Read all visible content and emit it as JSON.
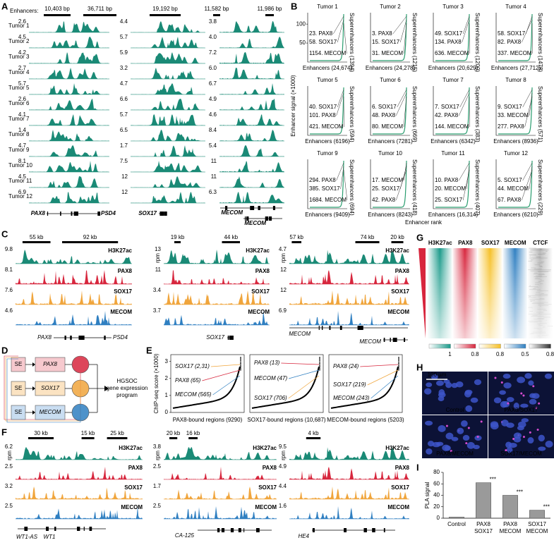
{
  "panel_labels": [
    "A",
    "B",
    "C",
    "D",
    "E",
    "F",
    "G",
    "H",
    "I"
  ],
  "a": {
    "enhancers_label": "Enhancers:",
    "scale_bars": [
      "10,403 bp",
      "36,711 bp",
      "19,192 bp",
      "11,582 bp",
      "11,986 bp"
    ],
    "tumors": [
      "Tumor 1",
      "Tumor 2",
      "Tumor 3",
      "Tumor 4",
      "Tumor 5",
      "Tumor 6",
      "Tumor 7",
      "Tumor 8",
      "Tumor 9",
      "Tumor 10",
      "Tumor 11",
      "Tumor 12"
    ],
    "track_color": "#1a8a76",
    "scales": [
      [
        2.6,
        4.5,
        4.2,
        2.7,
        5.7,
        2.6,
        4.1,
        1.4,
        4.7,
        8.1,
        4.5,
        6.9
      ],
      [
        4.4,
        5.7,
        5.9,
        3.2,
        4.7,
        6.6,
        5.7,
        6.5,
        1.7,
        7.5,
        12,
        12
      ],
      [
        3.8,
        "4.0",
        7.2,
        "6.0",
        6.7,
        4.9,
        4.6,
        8.4,
        5.4,
        11,
        11,
        6.3
      ]
    ],
    "genes": [
      {
        "name": "PAX8",
        "color": "#d7263d"
      },
      {
        "name": "PSD4",
        "color": "#000000"
      },
      {
        "name": "SOX17",
        "color": "#f0a53c"
      },
      {
        "name": "MECOM",
        "color": "#2f7fc1"
      },
      {
        "name": "MECOM",
        "color": "#2f7fc1"
      }
    ]
  },
  "b": {
    "y_label": "Enhancer signal (×1000)",
    "x_label": "Enhancer rank",
    "yticks": [
      50,
      100
    ],
    "ylim": [
      0,
      130
    ],
    "curve_color": "#2a9d6f",
    "plots": [
      {
        "title": "Tumor 1",
        "labels": [
          {
            "text": "23. PAX8",
            "color": "#d7263d"
          },
          {
            "text": "58. SOX17",
            "color": "#f0a53c"
          },
          {
            "text": "1154. MECOM",
            "color": "#2f7fc1"
          }
        ],
        "superenhancers": "Superenhancers (1394)",
        "enhancers": "Enhancers (24,674)"
      },
      {
        "title": "Tumor 2",
        "labels": [
          {
            "text": "3. PAX8",
            "color": "#d7263d"
          },
          {
            "text": "15. SOX17",
            "color": "#f0a53c"
          },
          {
            "text": "31. MECOM",
            "color": "#2f7fc1"
          }
        ],
        "superenhancers": "Superenhancers (1215)",
        "enhancers": "Enhancers (24,278)"
      },
      {
        "title": "Tumor 3",
        "labels": [
          {
            "text": "49. SOX17",
            "color": "#f0a53c"
          },
          {
            "text": "134. PAX8",
            "color": "#d7263d"
          },
          {
            "text": "636. MECOM",
            "color": "#2f7fc1"
          }
        ],
        "superenhancers": "Superenhancers (1200)",
        "enhancers": "Enhancers (20,629)"
      },
      {
        "title": "Tumor 4",
        "labels": [
          {
            "text": "58. SOX17",
            "color": "#f0a53c"
          },
          {
            "text": "82. PAX8",
            "color": "#d7263d"
          },
          {
            "text": "337. MECOM",
            "color": "#2f7fc1"
          }
        ],
        "superenhancers": "Superenhancers (1478)",
        "enhancers": "Enhancers (27,712)"
      },
      {
        "title": "Tumor 5",
        "labels": [
          {
            "text": "40. SOX17",
            "color": "#f0a53c"
          },
          {
            "text": "101. PAX8",
            "color": "#d7263d"
          },
          {
            "text": "421. MECOM",
            "color": "#2f7fc1"
          }
        ],
        "superenhancers": "Superenhancers (594)",
        "enhancers": "Enhancers (6196)"
      },
      {
        "title": "Tumor 6",
        "labels": [
          {
            "text": "6. SOX17",
            "color": "#f0a53c"
          },
          {
            "text": "48. PAX8",
            "color": "#d7263d"
          },
          {
            "text": "80. MECOM",
            "color": "#2f7fc1"
          }
        ],
        "superenhancers": "Superenhancers (669)",
        "enhancers": "Enhancers (7281)"
      },
      {
        "title": "Tumor 7",
        "labels": [
          {
            "text": "7. SOX17",
            "color": "#f0a53c"
          },
          {
            "text": "42. PAX8",
            "color": "#d7263d"
          },
          {
            "text": "144. MECOM",
            "color": "#2f7fc1"
          }
        ],
        "superenhancers": "Superenhancers (383)",
        "enhancers": "Enhancers (6342)"
      },
      {
        "title": "Tumor 8",
        "labels": [
          {
            "text": "9. SOX17",
            "color": "#f0a53c"
          },
          {
            "text": "33. MECOM",
            "color": "#2f7fc1"
          },
          {
            "text": "277. PAX8",
            "color": "#d7263d"
          }
        ],
        "superenhancers": "Superenhancers (571)",
        "enhancers": "Enhancers (8936)"
      },
      {
        "title": "Tumor 9",
        "labels": [
          {
            "text": "294. PAX8",
            "color": "#d7263d"
          },
          {
            "text": "385. SOX17",
            "color": "#f0a53c"
          },
          {
            "text": "1684. MECOM",
            "color": "#2f7fc1"
          }
        ],
        "superenhancers": "Superenhancers (694)",
        "enhancers": "Enhancers (9409)"
      },
      {
        "title": "Tumor 10",
        "labels": [
          {
            "text": "17. MECOM",
            "color": "#2f7fc1"
          },
          {
            "text": "25. SOX17",
            "color": "#f0a53c"
          },
          {
            "text": "42. PAX8",
            "color": "#d7263d"
          }
        ],
        "superenhancers": "Superenhancers (418)",
        "enhancers": "Enhancers (8243)"
      },
      {
        "title": "Tumor 11",
        "labels": [
          {
            "text": "10. PAX8",
            "color": "#d7263d"
          },
          {
            "text": "20. MECOM",
            "color": "#2f7fc1"
          },
          {
            "text": "25. SOX17",
            "color": "#f0a53c"
          }
        ],
        "superenhancers": "Superenhancers (407)",
        "enhancers": "Enhancers (16,314)"
      },
      {
        "title": "Tumor 12",
        "labels": [
          {
            "text": "5. SOX17",
            "color": "#f0a53c"
          },
          {
            "text": "44. MECOM",
            "color": "#2f7fc1"
          },
          {
            "text": "67. PAX8",
            "color": "#d7263d"
          }
        ],
        "superenhancers": "Superenhancers (229)",
        "enhancers": "Enhancers (6210)"
      }
    ]
  },
  "c": {
    "groups": [
      {
        "scale_bars": [
          "55 kb",
          "92 kb"
        ],
        "tracks": [
          {
            "name": "H3K27ac",
            "scale": 9.8,
            "color": "#1a8a76"
          },
          {
            "name": "PAX8",
            "scale": 8.1,
            "color": "#d7263d"
          },
          {
            "name": "SOX17",
            "scale": 7.6,
            "color": "#f0a53c"
          },
          {
            "name": "MECOM",
            "scale": 4.6,
            "color": "#2f7fc1"
          }
        ],
        "genes": [
          {
            "name": "PAX8",
            "color": "#d7263d"
          },
          {
            "name": "PSD4",
            "color": "#000000"
          }
        ]
      },
      {
        "scale_bars": [
          "19 kb",
          "44 kb"
        ],
        "unit": "rpm",
        "tracks": [
          {
            "name": "H3K27ac",
            "scale": 13,
            "color": "#1a8a76"
          },
          {
            "name": "PAX8",
            "scale": 11,
            "color": "#d7263d"
          },
          {
            "name": "SOX17",
            "scale": 3.4,
            "color": "#f0a53c"
          },
          {
            "name": "MECOM",
            "scale": 3.7,
            "color": "#2f7fc1"
          }
        ],
        "genes": [
          {
            "name": "SOX17",
            "color": "#f0a53c"
          }
        ]
      },
      {
        "scale_bars": [
          "57 kb",
          "74 kb",
          "20 kb"
        ],
        "unit": "rpm",
        "tracks": [
          {
            "name": "H3K27ac",
            "scale": 4.7,
            "color": "#1a8a76"
          },
          {
            "name": "PAX8",
            "scale": 12,
            "color": "#d7263d"
          },
          {
            "name": "SOX17",
            "scale": 12,
            "color": "#f0a53c"
          },
          {
            "name": "MECOM",
            "scale": 6.9,
            "color": "#2f7fc1"
          }
        ],
        "genes": [
          {
            "name": "MECOM",
            "color": "#2f7fc1"
          },
          {
            "name": "MECOM",
            "color": "#2f7fc1"
          }
        ]
      }
    ]
  },
  "d": {
    "se_labels": [
      "SE",
      "SE",
      "SE"
    ],
    "genes": [
      {
        "name": "PAX8",
        "color": "#d7263d",
        "tint": "#f6c9ce"
      },
      {
        "name": "SOX17",
        "color": "#f0a53c",
        "tint": "#fbe3c2"
      },
      {
        "name": "MECOM",
        "color": "#2f7fc1",
        "tint": "#c9ddf1"
      }
    ],
    "output": [
      "HGSOC",
      "gene expression",
      "program"
    ]
  },
  "e": {
    "y_label": "ChIP-seq score (×1000)",
    "yticks": [
      0,
      1,
      2,
      3
    ],
    "ylim": [
      0,
      3.4
    ],
    "plots": [
      {
        "x_label": "PAX8-bound regions (9290)",
        "labels": [
          {
            "text": "SOX17 (2,31)",
            "color": "#f0a53c"
          },
          {
            "text": "PAX8 (65)",
            "color": "#d7263d"
          },
          {
            "text": "MECOM (565)",
            "color": "#2f7fc1"
          }
        ]
      },
      {
        "x_label": "SOX17-bound regions (10,687)",
        "labels": [
          {
            "text": "PAX8 (13)",
            "color": "#d7263d"
          },
          {
            "text": "MECOM (47)",
            "color": "#2f7fc1"
          },
          {
            "text": "SOX17 (706)",
            "color": "#f0a53c"
          }
        ]
      },
      {
        "x_label": "MECOM-bound regions (5203)",
        "labels": [
          {
            "text": "PAX8 (24)",
            "color": "#d7263d"
          },
          {
            "text": "SOX17 (219)",
            "color": "#f0a53c"
          },
          {
            "text": "MECOM (243)",
            "color": "#2f7fc1"
          }
        ]
      }
    ]
  },
  "f": {
    "groups": [
      {
        "scale_bars": [
          "30 kb",
          "15 kb",
          "25 kb"
        ],
        "unit": "rpm",
        "tracks": [
          {
            "name": "H3K27ac",
            "scale": 6.2,
            "color": "#1a8a76"
          },
          {
            "name": "PAX8",
            "scale": 2.5,
            "color": "#d7263d"
          },
          {
            "name": "SOX17",
            "scale": 3.2,
            "color": "#f0a53c"
          },
          {
            "name": "MECOM",
            "scale": 2.5,
            "color": "#2f7fc1"
          }
        ],
        "genes": [
          {
            "name": "WT1-AS",
            "color": "#000000"
          },
          {
            "name": "WT1",
            "color": "#000000"
          }
        ]
      },
      {
        "scale_bars": [
          "20 kb",
          "16 kb"
        ],
        "unit": "rpm",
        "tracks": [
          {
            "name": "H3K27ac",
            "scale": 3.8,
            "color": "#1a8a76"
          },
          {
            "name": "PAX8",
            "scale": 2.5,
            "color": "#d7263d"
          },
          {
            "name": "SOX17",
            "scale": 1.7,
            "color": "#f0a53c"
          },
          {
            "name": "MECOM",
            "scale": 2.5,
            "color": "#2f7fc1"
          }
        ],
        "genes": [
          {
            "name": "CA-125",
            "color": "#000000"
          }
        ]
      },
      {
        "scale_bars": [
          "4 kb"
        ],
        "unit": "rpm",
        "tracks": [
          {
            "name": "H3K27ac",
            "scale": 9.5,
            "color": "#1a8a76"
          },
          {
            "name": "PAX8",
            "scale": 4.9,
            "color": "#d7263d"
          },
          {
            "name": "SOX17",
            "scale": 4.4,
            "color": "#f0a53c"
          },
          {
            "name": "MECOM",
            "scale": 1.6,
            "color": "#2f7fc1"
          }
        ],
        "genes": [
          {
            "name": "HE4",
            "color": "#000000"
          }
        ]
      }
    ]
  },
  "g": {
    "columns": [
      {
        "name": "H3K27ac",
        "color": "#1a9a8a",
        "tick": 1
      },
      {
        "name": "PAX8",
        "color": "#d7263d",
        "tick": 0.8
      },
      {
        "name": "SOX17",
        "color": "#f6c026",
        "tick": 0.8
      },
      {
        "name": "MECOM",
        "color": "#2f7fc1",
        "tick": 0.5
      },
      {
        "name": "CTCF",
        "color": "#333333",
        "tick": 0.8
      }
    ]
  },
  "h": {
    "scale": "100 µm",
    "labels": [
      "Control",
      "PAX8/SOX17",
      "PAX8/MECOM",
      "SOX17/MECOM"
    ]
  },
  "chart_data": {
    "type": "bar",
    "y_label": "PLA signal",
    "categories": [
      [
        "Control"
      ],
      [
        "PAX8",
        "SOX17"
      ],
      [
        "PAX8",
        "MECOM"
      ],
      [
        "SOX17",
        "MECOM"
      ]
    ],
    "values": [
      2,
      62,
      40,
      14
    ],
    "annotations": [
      null,
      "***",
      "***",
      "***"
    ],
    "color": "#9a9a9a",
    "ylim": [
      0,
      80
    ],
    "yticks": [
      0,
      20,
      40,
      60,
      80
    ]
  }
}
